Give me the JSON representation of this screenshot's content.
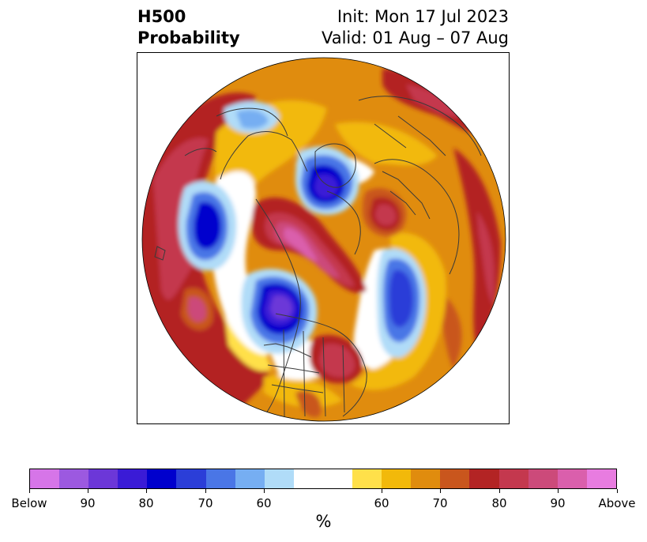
{
  "header": {
    "title_line1": "H500",
    "title_line2": "Probability",
    "init_text": "Init: Mon 17 Jul 2023",
    "valid_text": "Valid: 01 Aug – 07 Aug"
  },
  "map": {
    "projection": "north-polar-stereographic",
    "features": [
      "country-borders",
      "coastlines",
      "us-state-borders"
    ]
  },
  "colorbar": {
    "colors": [
      "#d675e8",
      "#9c59e0",
      "#6c37d8",
      "#3a1bd6",
      "#0000cd",
      "#2b3ed8",
      "#4a76e6",
      "#76aef2",
      "#b0dcf8",
      "#ffffff",
      "#ffe04a",
      "#f2b90a",
      "#e08c0e",
      "#c9561d",
      "#b32424",
      "#c4384e",
      "#cc4a7a",
      "#da5fac",
      "#e87ce0"
    ],
    "tick_labels": [
      "Below",
      "90",
      "80",
      "70",
      "60",
      "60",
      "70",
      "80",
      "90",
      "Above"
    ],
    "units": "%"
  }
}
